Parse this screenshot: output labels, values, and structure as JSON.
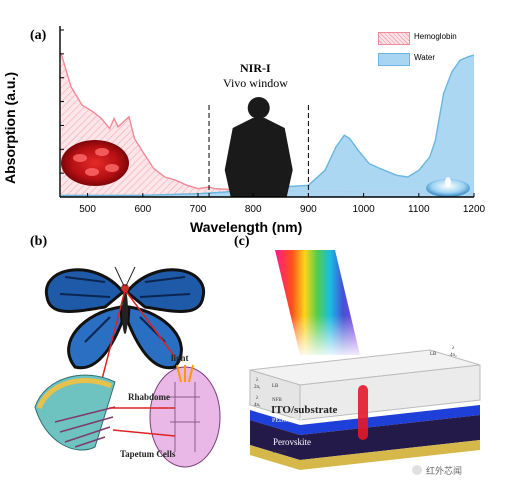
{
  "chart_data": {
    "type": "area",
    "panel_label": "(a)",
    "xlabel": "Wavelength (nm)",
    "ylabel": "Absorption (a.u.)",
    "xlim": [
      450,
      1200
    ],
    "ylim": [
      0,
      1
    ],
    "xticks": [
      500,
      600,
      700,
      800,
      900,
      1000,
      1100,
      1200
    ],
    "window_label_1": "NIR-I",
    "window_label_2": "Vivo window",
    "window_bounds": [
      720,
      900
    ],
    "series": [
      {
        "name": "Hemoglobin",
        "color": "#f08a96",
        "fill": "#fbdde2",
        "x": [
          452,
          470,
          490,
          510,
          525,
          540,
          548,
          555,
          565,
          575,
          585,
          600,
          620,
          640,
          660,
          680,
          700,
          720,
          730,
          760,
          800,
          850,
          900,
          950,
          1000,
          1050,
          1100,
          1150,
          1200
        ],
        "values": [
          0.86,
          0.66,
          0.55,
          0.51,
          0.47,
          0.41,
          0.47,
          0.42,
          0.45,
          0.48,
          0.35,
          0.27,
          0.17,
          0.12,
          0.1,
          0.07,
          0.05,
          0.06,
          0.05,
          0.045,
          0.045,
          0.04,
          0.035,
          0.035,
          0.03,
          0.03,
          0.03,
          0.03,
          0.03
        ]
      },
      {
        "name": "Water",
        "color": "#6ab6e0",
        "fill": "#a8d5f2",
        "x": [
          452,
          500,
          600,
          700,
          750,
          800,
          850,
          900,
          930,
          950,
          965,
          975,
          990,
          1010,
          1030,
          1060,
          1080,
          1100,
          1120,
          1130,
          1145,
          1160,
          1175,
          1190,
          1200
        ],
        "values": [
          0.01,
          0.01,
          0.01,
          0.02,
          0.03,
          0.05,
          0.06,
          0.07,
          0.16,
          0.3,
          0.37,
          0.35,
          0.28,
          0.2,
          0.17,
          0.13,
          0.12,
          0.16,
          0.24,
          0.34,
          0.62,
          0.75,
          0.82,
          0.84,
          0.85
        ]
      }
    ],
    "legend": [
      "Hemoglobin",
      "Water"
    ],
    "legend_position": "top-right"
  },
  "panel_b": {
    "label": "(b)",
    "light": "light",
    "rhabdome": "Rhabdome",
    "tapetum": "Tapetum Cells"
  },
  "panel_c": {
    "label": "(c)",
    "ito": "ITO/substrate",
    "pedot": "PEDOT:PSS",
    "perovskite": "Perovskite",
    "pcbm": "PCBM",
    "lb": "LB",
    "nfb": "NFB",
    "lambda": "λ",
    "lambda_eq_n2": "4n₂",
    "lambda_eq_n1": "4n₁",
    "lambda_eq_2n1": "2n₁"
  },
  "watermark": "红外芯闻"
}
